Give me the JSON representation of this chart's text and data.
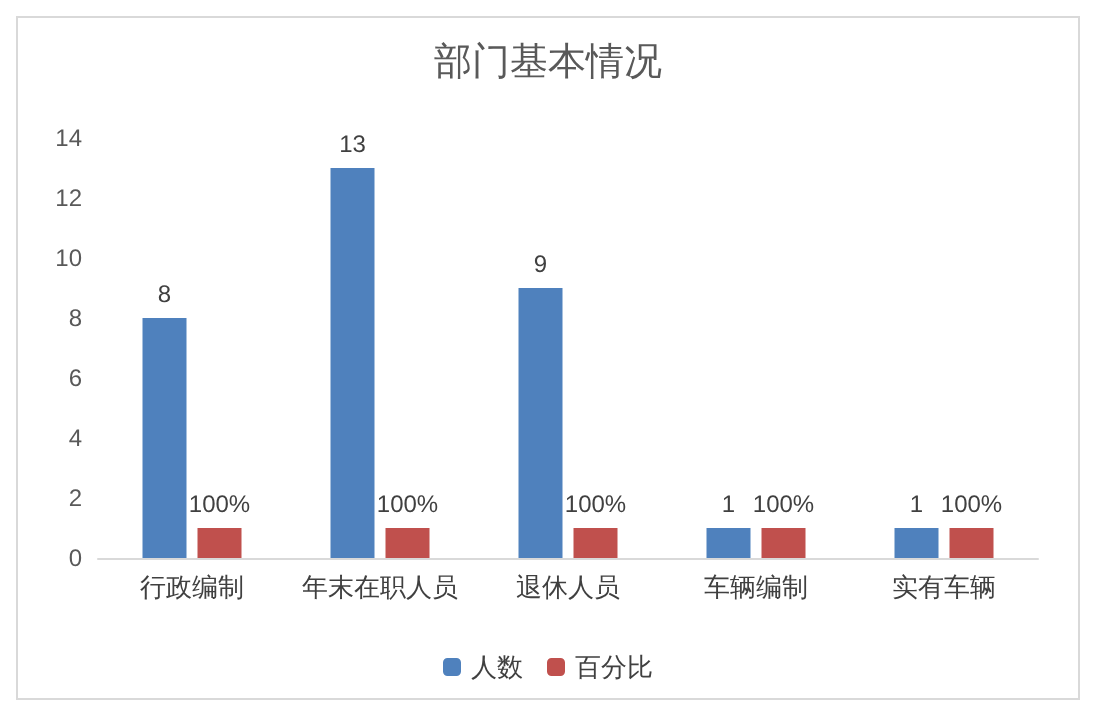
{
  "chart_data": {
    "type": "bar",
    "title": "部门基本情况",
    "categories": [
      "行政编制",
      "年末在职人员",
      "退休人员",
      "车辆编制",
      "实有车辆"
    ],
    "series": [
      {
        "name": "人数",
        "color": "#4f81bd",
        "values": [
          8,
          13,
          9,
          1,
          1
        ],
        "value_labels": [
          "8",
          "13",
          "9",
          "1",
          "1"
        ]
      },
      {
        "name": "百分比",
        "color": "#c0504d",
        "values": [
          1,
          1,
          1,
          1,
          1
        ],
        "value_labels": [
          "100%",
          "100%",
          "100%",
          "100%",
          "100%"
        ]
      }
    ],
    "ylim": [
      0,
      14
    ],
    "yticks": [
      0,
      2,
      4,
      6,
      8,
      10,
      12,
      14
    ],
    "grid": false,
    "legend": "bottom"
  }
}
